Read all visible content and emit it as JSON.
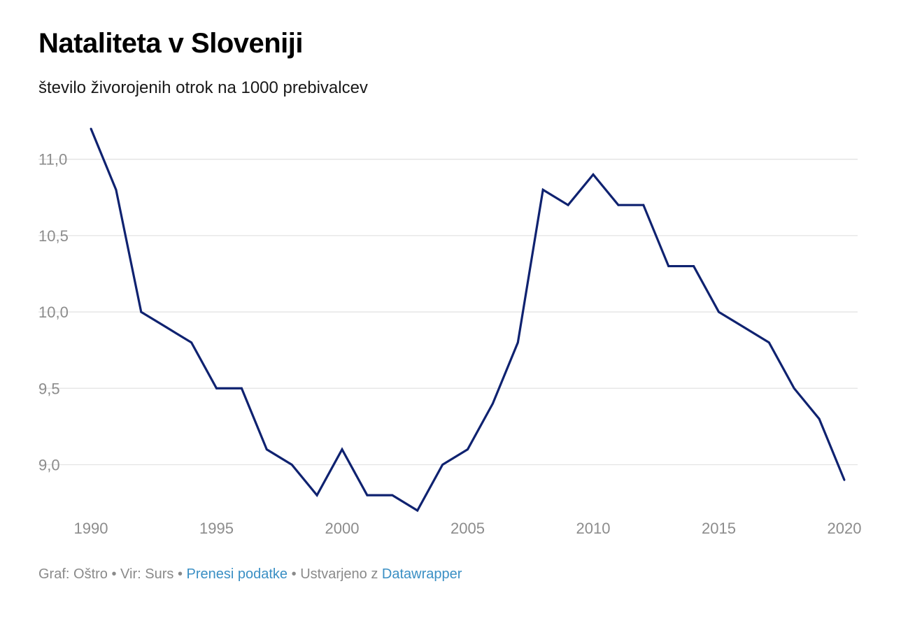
{
  "header": {
    "title": "Nataliteta v Sloveniji",
    "subtitle": "število živorojenih otrok na 1000 prebivalcev"
  },
  "chart_data": {
    "type": "line",
    "title": "Nataliteta v Sloveniji",
    "subtitle": "število živorojenih otrok na 1000 prebivalcev",
    "xlabel": "",
    "ylabel": "",
    "x": [
      1990,
      1991,
      1992,
      1993,
      1994,
      1995,
      1996,
      1997,
      1998,
      1999,
      2000,
      2001,
      2002,
      2003,
      2004,
      2005,
      2006,
      2007,
      2008,
      2009,
      2010,
      2011,
      2012,
      2013,
      2014,
      2015,
      2016,
      2017,
      2018,
      2019,
      2020
    ],
    "series": [
      {
        "name": "Nataliteta",
        "color": "#0f2270",
        "values": [
          11.2,
          10.8,
          10.0,
          9.9,
          9.8,
          9.5,
          9.5,
          9.1,
          9.0,
          8.8,
          9.1,
          8.8,
          8.8,
          8.7,
          9.0,
          9.1,
          9.4,
          9.8,
          10.8,
          10.7,
          10.9,
          10.7,
          10.7,
          10.3,
          10.3,
          10.0,
          9.9,
          9.8,
          9.5,
          9.3,
          8.9
        ]
      }
    ],
    "xlim": [
      1990,
      2020
    ],
    "x_ticks": [
      1990,
      1995,
      2000,
      2005,
      2010,
      2015,
      2020
    ],
    "x_tick_labels": [
      "1990",
      "1995",
      "2000",
      "2005",
      "2010",
      "2015",
      "2020"
    ],
    "y_ticks": [
      9.0,
      9.5,
      10.0,
      10.5,
      11.0
    ],
    "y_tick_labels": [
      "9,0",
      "9,5",
      "10,0",
      "10,5",
      "11,0"
    ],
    "ylim": [
      8.7,
      11.2
    ],
    "grid": true
  },
  "footer": {
    "graph_credit": "Graf: Oštro",
    "separator": "•",
    "source": "Vir: Surs",
    "download_link": "Prenesi podatke",
    "made_with": "Ustvarjeno z",
    "datawrapper_link": "Datawrapper"
  },
  "colors": {
    "line": "#0f2270",
    "grid": "#e3e3e3",
    "tick_text": "#8c8c8c",
    "footer_text": "#8a8a8a",
    "link": "#3a8fc4"
  }
}
